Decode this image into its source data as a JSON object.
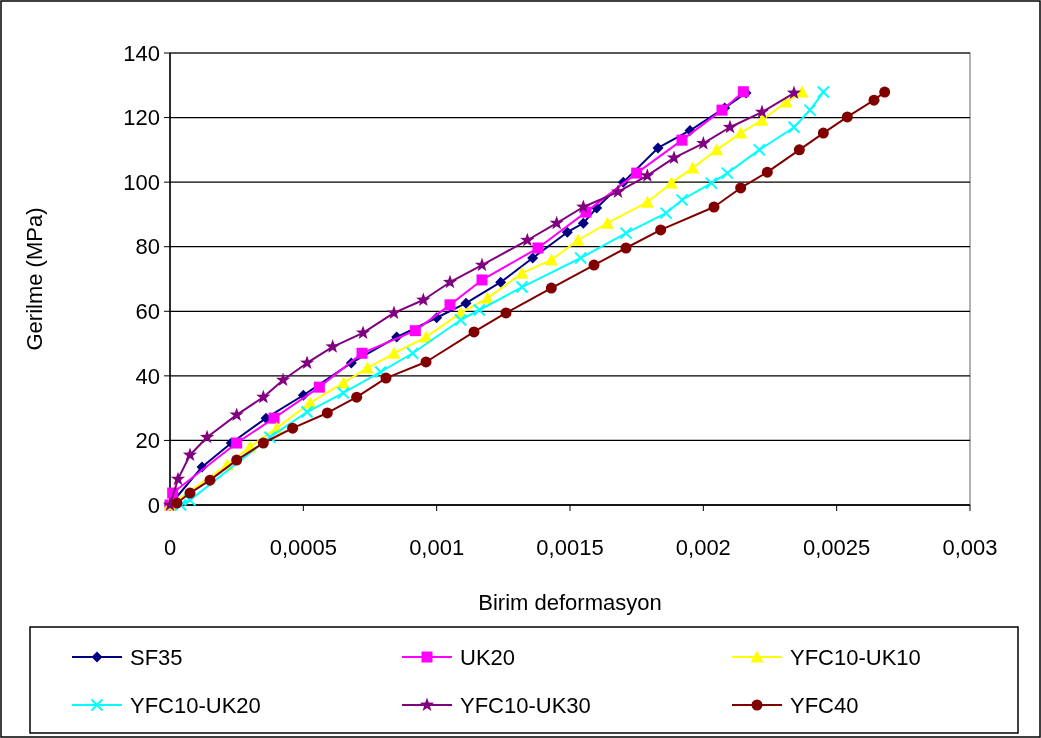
{
  "chart_data": {
    "type": "line",
    "xlabel": "Birim deformasyon",
    "ylabel": "Gerilme (MPa)",
    "xlim": [
      0,
      0.003
    ],
    "ylim": [
      0,
      140
    ],
    "xticks": [
      0,
      {
        "value": 0.0005,
        "label": "0,0005"
      },
      {
        "value": 0.001,
        "label": "0,001"
      },
      {
        "value": 0.0015,
        "label": "0,0015"
      },
      {
        "value": 0.002,
        "label": "0,002"
      },
      {
        "value": 0.0025,
        "label": "0,0025"
      },
      {
        "value": 0.003,
        "label": "0,003"
      }
    ],
    "yticks": [
      0,
      20,
      40,
      60,
      80,
      100,
      120,
      140
    ],
    "grid": "y",
    "legend": "bottom",
    "line_style": "solid",
    "series": [
      {
        "name": "SF35",
        "color": "#000080",
        "marker": "diamond",
        "x": [
          0,
          0.00012,
          0.00023,
          0.00036,
          0.0005,
          0.00068,
          0.00085,
          0.001,
          0.00111,
          0.00124,
          0.00136,
          0.00149,
          0.00155,
          0.0016,
          0.0017,
          0.00183,
          0.00195,
          0.00208,
          0.00216
        ],
        "values": [
          0,
          11.8,
          19.2,
          26.9,
          34,
          44,
          52,
          58,
          62.5,
          69,
          76.5,
          84.5,
          87.3,
          92,
          100,
          110.6,
          116,
          123,
          127.6
        ]
      },
      {
        "name": "UK20",
        "color": "#ff00ff",
        "marker": "square",
        "x": [
          0,
          1e-05,
          0.00025,
          0.00039,
          0.00056,
          0.00072,
          0.00092,
          0.00105,
          0.00117,
          0.00138,
          0.00156,
          0.00175,
          0.00192,
          0.00207,
          0.00215
        ],
        "values": [
          0,
          3.7,
          19.2,
          26.9,
          36.5,
          47,
          54,
          62,
          69.7,
          79.6,
          90.7,
          102.8,
          113,
          122.3,
          128
        ]
      },
      {
        "name": "YFC10-UK10",
        "color": "#ffff00",
        "marker": "triangle",
        "x": [
          0,
          0.000214,
          0.0003,
          0.0004,
          0.000525,
          0.00065,
          0.00074,
          0.00084,
          0.00096,
          0.00109,
          0.00119,
          0.00132,
          0.00143,
          0.00153,
          0.00164,
          0.00179,
          0.00188,
          0.00196,
          0.00205,
          0.00214,
          0.00222,
          0.00231,
          0.00237
        ],
        "values": [
          0,
          12.4,
          18,
          23.8,
          31.6,
          37.8,
          42.4,
          47,
          52,
          59.5,
          64,
          71.8,
          75.9,
          82,
          87.3,
          93.8,
          99.7,
          104.4,
          110,
          115.2,
          119.2,
          124.8,
          127.9
        ]
      },
      {
        "name": "YFC10-UK20",
        "color": "#00ffff",
        "marker": "cross",
        "x": [
          4e-05,
          7.5e-05,
          0.000375,
          0.000514,
          0.00065,
          0.00079,
          0.00091,
          0.00109,
          0.00116,
          0.00132,
          0.00154,
          0.00171,
          0.00186,
          0.00192,
          0.00203,
          0.00209,
          0.00221,
          0.00234,
          0.0024,
          0.00245
        ],
        "values": [
          0,
          1.5,
          21,
          28.8,
          34.7,
          41.2,
          47,
          57.3,
          60.4,
          67.5,
          76.5,
          84.2,
          90.4,
          94.5,
          99.7,
          102.8,
          110,
          117,
          122.3,
          127.9
        ]
      },
      {
        "name": "YFC10-UK30",
        "color": "#800080",
        "marker": "star",
        "x": [
          0,
          3e-05,
          7.5e-05,
          0.000139,
          0.00025,
          0.00035,
          0.000424,
          0.000514,
          0.00061,
          0.000724,
          0.00084,
          0.00095,
          0.00105,
          0.00117,
          0.00134,
          0.00145,
          0.00155,
          0.00168,
          0.00179,
          0.00189,
          0.002,
          0.0021,
          0.00222,
          0.00234
        ],
        "values": [
          0,
          8,
          15.5,
          21,
          27.9,
          33.4,
          38.7,
          44,
          49,
          53.3,
          59.5,
          63.5,
          69,
          74.3,
          82,
          87.3,
          92.3,
          97,
          102,
          107.5,
          112,
          117,
          121.7,
          127.6
        ]
      },
      {
        "name": "YFC40",
        "color": "#800000",
        "marker": "circle",
        "x": [
          2.6e-05,
          7.5e-05,
          0.00015,
          0.00025,
          0.00035,
          0.00046,
          0.00059,
          0.0007,
          0.00081,
          0.00096,
          0.00114,
          0.00126,
          0.00143,
          0.00159,
          0.00171,
          0.00184,
          0.00204,
          0.00214,
          0.00224,
          0.00236,
          0.00245,
          0.00254,
          0.00264,
          0.00268
        ],
        "values": [
          0.6,
          3.7,
          7.7,
          13.9,
          19.2,
          23.8,
          28.5,
          33.4,
          39.3,
          44.3,
          53.6,
          59.5,
          67.2,
          74.3,
          79.6,
          85.2,
          92.3,
          98.2,
          103.1,
          110,
          115.2,
          120.2,
          125.4,
          127.9
        ]
      }
    ]
  }
}
